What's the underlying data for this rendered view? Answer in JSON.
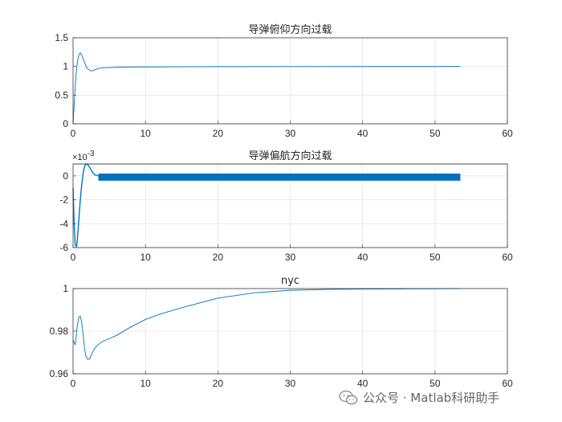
{
  "chart_data": [
    {
      "type": "line",
      "title": "导弹俯仰方向过载",
      "xlabel": "",
      "ylabel": "",
      "xlim": [
        0,
        60
      ],
      "ylim": [
        0,
        1.5
      ],
      "xticks": [
        0,
        10,
        20,
        30,
        40,
        50,
        60
      ],
      "xtick_labels": [
        "0",
        "10",
        "20",
        "30",
        "40",
        "50",
        "60"
      ],
      "yticks": [
        0,
        0.5,
        1,
        1.5
      ],
      "ytick_labels": [
        "0",
        "0.5",
        "1",
        "1.5"
      ],
      "grid": true,
      "series": [
        {
          "x": [
            0,
            0.2,
            0.4,
            0.6,
            0.8,
            1.0,
            1.2,
            1.5,
            1.8,
            2.1,
            2.5,
            3.0,
            3.5,
            4.0,
            5.0,
            6.0,
            8.0,
            10.0,
            15.0,
            20.0,
            30.0,
            40.0,
            53.5
          ],
          "y": [
            0.0,
            0.45,
            0.85,
            1.08,
            1.2,
            1.24,
            1.2,
            1.1,
            1.0,
            0.95,
            0.92,
            0.94,
            0.965,
            0.975,
            0.98,
            0.985,
            0.99,
            0.992,
            0.995,
            0.997,
            0.998,
            0.999,
            0.999
          ]
        }
      ]
    },
    {
      "type": "line",
      "title": "导弹偏航方向过载",
      "xlabel": "",
      "ylabel": "",
      "xlim": [
        0,
        60
      ],
      "ylim": [
        -0.006,
        0.001
      ],
      "y_exponent_label": "×10",
      "y_exponent_power": "-3",
      "xticks": [
        0,
        10,
        20,
        30,
        40,
        50,
        60
      ],
      "xtick_labels": [
        "0",
        "10",
        "20",
        "30",
        "40",
        "50",
        "60"
      ],
      "yticks": [
        -0.006,
        -0.004,
        -0.002,
        0
      ],
      "ytick_labels": [
        "-6",
        "-4",
        "-2",
        "0"
      ],
      "grid": true,
      "series": [
        {
          "x": [
            0,
            0.15,
            0.3,
            0.5,
            0.7,
            0.9,
            1.1,
            1.3,
            1.5,
            1.7,
            1.9,
            2.1,
            2.4,
            2.7,
            3.0,
            3.5,
            4.0,
            5.0,
            7.0,
            10.0,
            15.0,
            20.0,
            30.0,
            40.0,
            53.5
          ],
          "y": [
            -0.001,
            -0.004,
            -0.0058,
            -0.0059,
            -0.0045,
            -0.0028,
            -0.0013,
            -0.0002,
            0.0006,
            0.00095,
            0.001,
            0.0009,
            0.0006,
            0.0003,
            0.0001,
            0.0,
            -5e-05,
            -0.0001,
            -0.00012,
            -0.00014,
            -0.00017,
            -0.0002,
            -0.00023,
            -0.00025,
            -0.00026
          ]
        }
      ],
      "band_y_range": [
        -0.0004,
        0.0002
      ],
      "band_x_range": [
        3.5,
        53.5
      ]
    },
    {
      "type": "line",
      "title": "nyc",
      "xlabel": "",
      "ylabel": "",
      "xlim": [
        0,
        60
      ],
      "ylim": [
        0.96,
        1
      ],
      "xticks": [
        0,
        10,
        20,
        30,
        40,
        50,
        60
      ],
      "xtick_labels": [
        "0",
        "10",
        "20",
        "30",
        "40",
        "50",
        "60"
      ],
      "yticks": [
        0.96,
        0.98,
        1
      ],
      "ytick_labels": [
        "0.96",
        "0.98",
        "1"
      ],
      "grid": true,
      "series": [
        {
          "x": [
            0,
            0.3,
            0.6,
            0.8,
            1.0,
            1.2,
            1.4,
            1.6,
            1.8,
            2.0,
            2.3,
            2.6,
            3.0,
            3.5,
            4.0,
            5.0,
            6.0,
            8.0,
            10.0,
            12.0,
            15.0,
            20.0,
            25.0,
            30.0,
            35.0,
            40.0,
            45.0,
            50.0,
            53.5
          ],
          "y": [
            0.976,
            0.9735,
            0.983,
            0.9865,
            0.987,
            0.984,
            0.978,
            0.9715,
            0.968,
            0.9668,
            0.967,
            0.9695,
            0.972,
            0.9738,
            0.975,
            0.9765,
            0.978,
            0.982,
            0.9855,
            0.988,
            0.991,
            0.9955,
            0.998,
            0.9992,
            0.9996,
            0.9998,
            0.99985,
            0.99995,
            1.0
          ]
        }
      ]
    }
  ],
  "watermark": {
    "text": "公众号 · Matlab科研助手",
    "icon": "wechat-icon"
  },
  "colors": {
    "series": "#0072bd",
    "axes": "#262626",
    "grid": "#dcdcdc"
  }
}
